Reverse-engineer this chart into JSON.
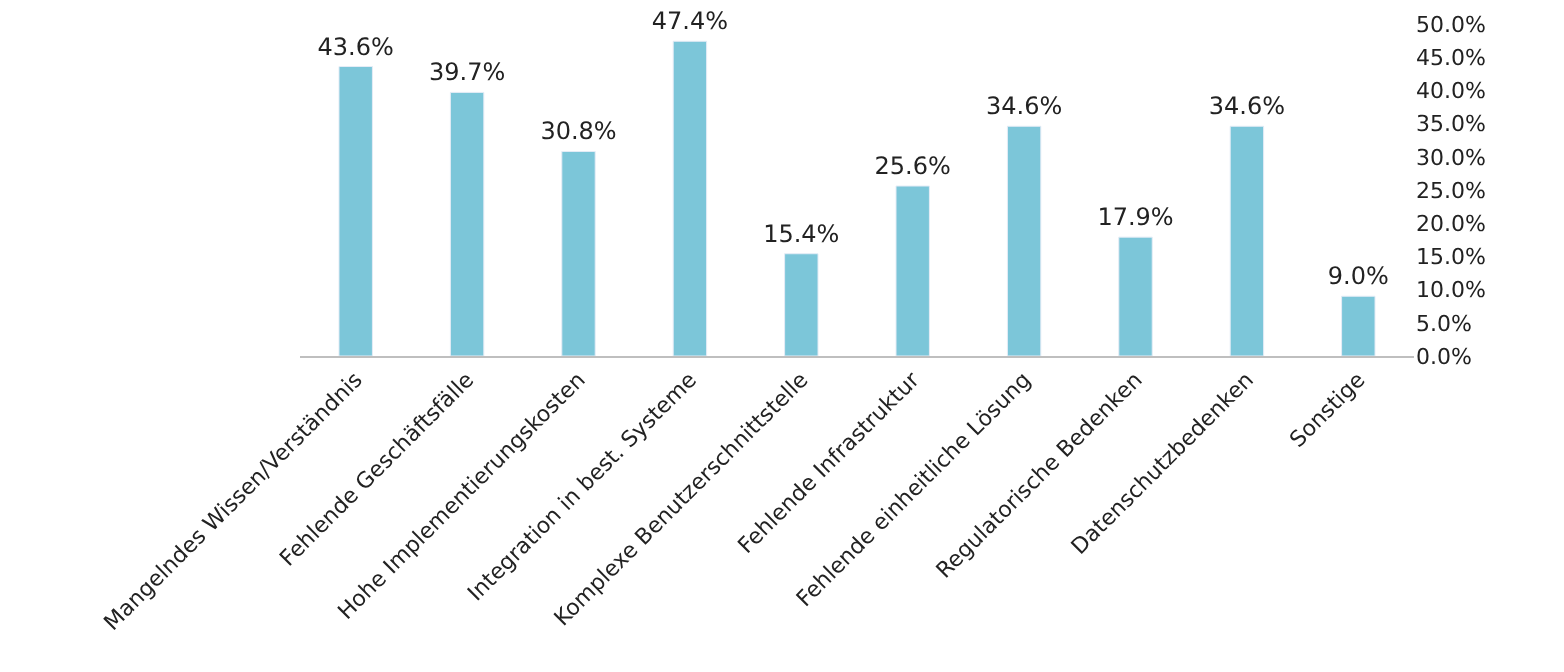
{
  "chart_data": {
    "type": "bar",
    "categories": [
      "Mangelndes Wissen/Verständnis",
      "Fehlende Geschäftsfälle",
      "Hohe Implementierungskosten",
      "Integration in best. Systeme",
      "Komplexe Benutzerschnittstelle",
      "Fehlende Infrastruktur",
      "Fehlende einheitliche Lösung",
      "Regulatorische Bedenken",
      "Datenschutzbedenken",
      "Sonstige"
    ],
    "values": [
      43.6,
      39.7,
      30.8,
      47.4,
      15.4,
      25.6,
      34.6,
      17.9,
      34.6,
      9.0
    ],
    "value_labels": [
      "43.6%",
      "39.7%",
      "30.8%",
      "47.4%",
      "15.4%",
      "25.6%",
      "34.6%",
      "17.9%",
      "34.6%",
      "9.0%"
    ],
    "color": "#7cc6d9",
    "ylim": [
      0,
      50
    ],
    "yticks": [
      {
        "value": 0,
        "label": "0.0%"
      },
      {
        "value": 5,
        "label": "5.0%"
      },
      {
        "value": 10,
        "label": "10.0%"
      },
      {
        "value": 15,
        "label": "15.0%"
      },
      {
        "value": 20,
        "label": "20.0%"
      },
      {
        "value": 25,
        "label": "25.0%"
      },
      {
        "value": 30,
        "label": "30.0%"
      },
      {
        "value": 35,
        "label": "35.0%"
      },
      {
        "value": 40,
        "label": "40.0%"
      },
      {
        "value": 45,
        "label": "45.0%"
      },
      {
        "value": 50,
        "label": "50.0%"
      }
    ],
    "legend": false
  }
}
